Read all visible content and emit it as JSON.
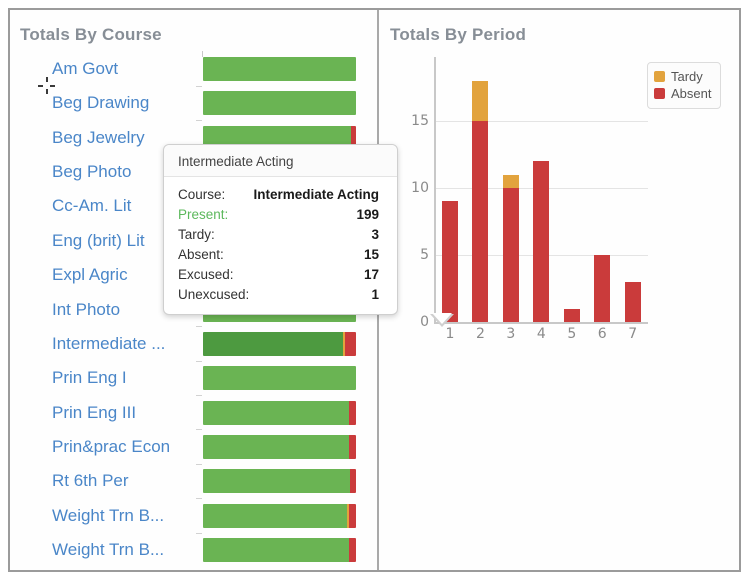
{
  "colors": {
    "present_green": "#6ab453",
    "present_green_hover": "#4d9a40",
    "tardy_orange": "#e2a33d",
    "absent_red": "#ca3b3b",
    "course_link_blue": "#4a86c8",
    "title_gray": "#878e96"
  },
  "course_panel": {
    "title": "Totals By Course"
  },
  "period_panel": {
    "title": "Totals By Period",
    "legend": [
      {
        "label": "Tardy",
        "color": "#e2a33d"
      },
      {
        "label": "Absent",
        "color": "#ca3b3b"
      }
    ]
  },
  "tooltip": {
    "title": "Intermediate Acting",
    "rows": [
      {
        "label": "Course:",
        "value": "Intermediate Acting",
        "label_color": "#333333"
      },
      {
        "label": "Present:",
        "value": "199",
        "label_color": "#5cb85c"
      },
      {
        "label": "Tardy:",
        "value": "3",
        "label_color": "#333333"
      },
      {
        "label": "Absent:",
        "value": "15",
        "label_color": "#333333"
      },
      {
        "label": "Excused:",
        "value": "17",
        "label_color": "#333333"
      },
      {
        "label": "Unexcused:",
        "value": "1",
        "label_color": "#333333"
      }
    ]
  },
  "chart_data": [
    {
      "type": "bar",
      "orientation": "horizontal",
      "stacking": "percent",
      "title": "Totals By Course",
      "series_names": [
        "Present",
        "Tardy",
        "Absent"
      ],
      "note_units": "percent of bar width, estimated from pixels; rows 4-8 bars occluded by tooltip",
      "categories": [
        {
          "label": "Am Govt",
          "present_pct": 100,
          "tardy_pct": 0,
          "absent_pct": 0,
          "hovered": false
        },
        {
          "label": "Beg Drawing",
          "present_pct": 100,
          "tardy_pct": 0,
          "absent_pct": 0,
          "hovered": false
        },
        {
          "label": "Beg Jewelry",
          "present_pct": 96.7,
          "tardy_pct": 0,
          "absent_pct": 3.3,
          "hovered": false
        },
        {
          "label": "Beg Photo",
          "present_pct": 100,
          "tardy_pct": 0,
          "absent_pct": 0,
          "hovered": false
        },
        {
          "label": "Cc-Am. Lit",
          "present_pct": 100,
          "tardy_pct": 0,
          "absent_pct": 0,
          "hovered": false
        },
        {
          "label": "Eng (brit) Lit",
          "present_pct": 100,
          "tardy_pct": 0,
          "absent_pct": 0,
          "hovered": false
        },
        {
          "label": "Expl Agric",
          "present_pct": 100,
          "tardy_pct": 0,
          "absent_pct": 0,
          "hovered": false
        },
        {
          "label": "Int Photo",
          "present_pct": 100,
          "tardy_pct": 0,
          "absent_pct": 0,
          "hovered": false
        },
        {
          "label": "Intermediate ...",
          "present_pct": 91.7,
          "tardy_pct": 1.4,
          "absent_pct": 6.9,
          "hovered": true
        },
        {
          "label": "Prin Eng I",
          "present_pct": 100,
          "tardy_pct": 0,
          "absent_pct": 0,
          "hovered": false
        },
        {
          "label": "Prin Eng III",
          "present_pct": 95.4,
          "tardy_pct": 0,
          "absent_pct": 4.6,
          "hovered": false
        },
        {
          "label": "Prin&prac Econ",
          "present_pct": 95.4,
          "tardy_pct": 0,
          "absent_pct": 4.6,
          "hovered": false
        },
        {
          "label": "Rt 6th Per",
          "present_pct": 96.1,
          "tardy_pct": 0,
          "absent_pct": 3.9,
          "hovered": false
        },
        {
          "label": "Weight Trn B...",
          "present_pct": 94.1,
          "tardy_pct": 1.3,
          "absent_pct": 4.6,
          "hovered": false
        },
        {
          "label": "Weight Trn B...",
          "present_pct": 95.4,
          "tardy_pct": 0,
          "absent_pct": 4.6,
          "hovered": false
        }
      ],
      "hovered_course_details": {
        "course": "Intermediate Acting",
        "present": 199,
        "tardy": 3,
        "absent": 15,
        "excused": 17,
        "unexcused": 1
      }
    },
    {
      "type": "bar",
      "orientation": "vertical",
      "stacking": "stacked",
      "title": "Totals By Period",
      "xlabel": "",
      "ylabel": "",
      "categories": [
        "1",
        "2",
        "3",
        "4",
        "5",
        "6",
        "7"
      ],
      "series": [
        {
          "name": "Tardy",
          "color": "#e2a33d",
          "values": [
            0,
            3,
            1,
            0,
            0,
            0,
            0
          ]
        },
        {
          "name": "Absent",
          "color": "#ca3b3b",
          "values": [
            9,
            15,
            10,
            12,
            1,
            5,
            3
          ]
        }
      ],
      "y_ticks": [
        0,
        5,
        10,
        15
      ],
      "ylim": [
        0,
        19.8
      ],
      "grid": true,
      "legend_position": "top-right"
    }
  ]
}
